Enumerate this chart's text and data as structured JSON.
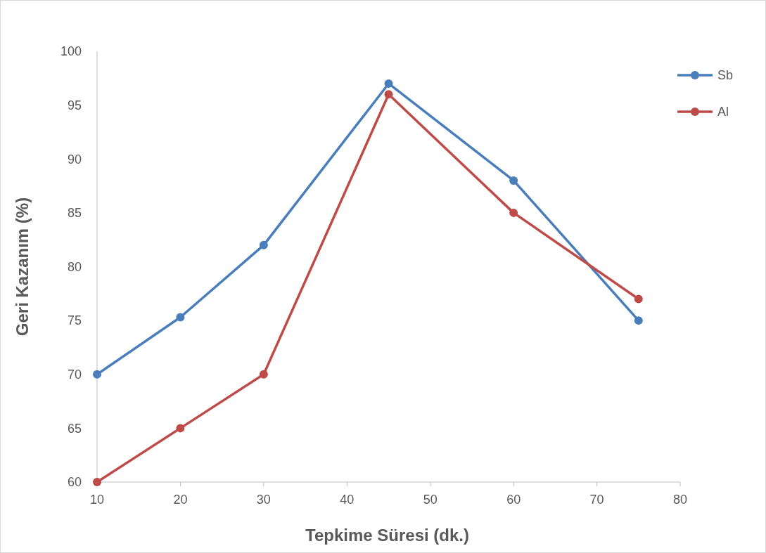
{
  "chart_data": {
    "type": "line",
    "xlabel": "Tepkime Süresi (dk.)",
    "ylabel": "Geri Kazanım (%)",
    "x": [
      10,
      20,
      30,
      45,
      60,
      75
    ],
    "series": [
      {
        "name": "Sb",
        "color": "#4a7ebb",
        "values": [
          70,
          75.3,
          82,
          97,
          88,
          75
        ]
      },
      {
        "name": "Al",
        "color": "#be4b48",
        "values": [
          60,
          65,
          70,
          96,
          85,
          77
        ]
      }
    ],
    "xlim": [
      10,
      80
    ],
    "xticks": [
      10,
      20,
      30,
      40,
      50,
      60,
      70,
      80
    ],
    "ylim": [
      60,
      100
    ],
    "yticks": [
      60,
      65,
      70,
      75,
      80,
      85,
      90,
      95,
      100
    ],
    "grid": false,
    "legend": "top right",
    "marker": "circle",
    "line_style": "solid"
  }
}
